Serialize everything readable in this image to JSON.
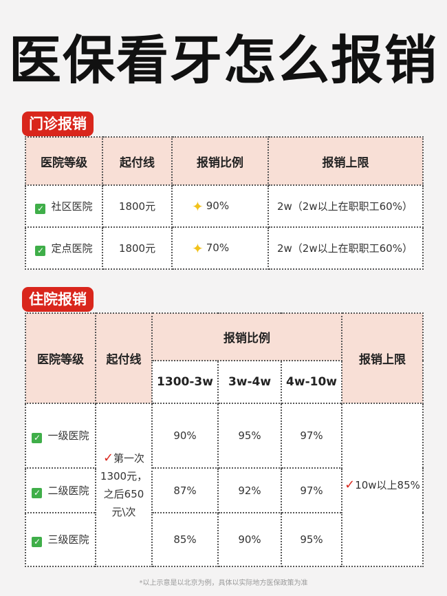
{
  "title": "医保看牙怎么报销",
  "outpatient": {
    "tag": "门诊报销",
    "headers": [
      "医院等级",
      "起付线",
      "报销比例",
      "报销上限"
    ],
    "rows": [
      {
        "level": "社区医院",
        "deductible": "1800元",
        "ratio": "90%",
        "limit": "2w（2w以上在职职工60%）"
      },
      {
        "level": "定点医院",
        "deductible": "1800元",
        "ratio": "70%",
        "limit": "2w（2w以上在职职工60%）"
      }
    ]
  },
  "inpatient": {
    "tag": "住院报销",
    "headers": {
      "level": "医院等级",
      "deductible": "起付线",
      "ratio": "报销比例",
      "limit": "报销上限",
      "ranges": [
        "1300-3w",
        "3w-4w",
        "4w-10w"
      ]
    },
    "rows": [
      {
        "level": "一级医院",
        "ratios": [
          "90%",
          "95%",
          "97%"
        ]
      },
      {
        "level": "二级医院",
        "ratios": [
          "87%",
          "92%",
          "97%"
        ]
      },
      {
        "level": "三级医院",
        "ratios": [
          "85%",
          "90%",
          "95%"
        ]
      }
    ],
    "deductible_text": [
      "第一次",
      "1300元，",
      "之后650",
      "元\\次"
    ],
    "limit_text": "10w以上85%"
  },
  "footnote": "*以上示意是以北京为例，具体以实际地方医保政策为准",
  "colors": {
    "accent": "#d9261c",
    "header_bg": "#f8dfd6",
    "check": "#3fae49",
    "star": "#f2c21b"
  }
}
